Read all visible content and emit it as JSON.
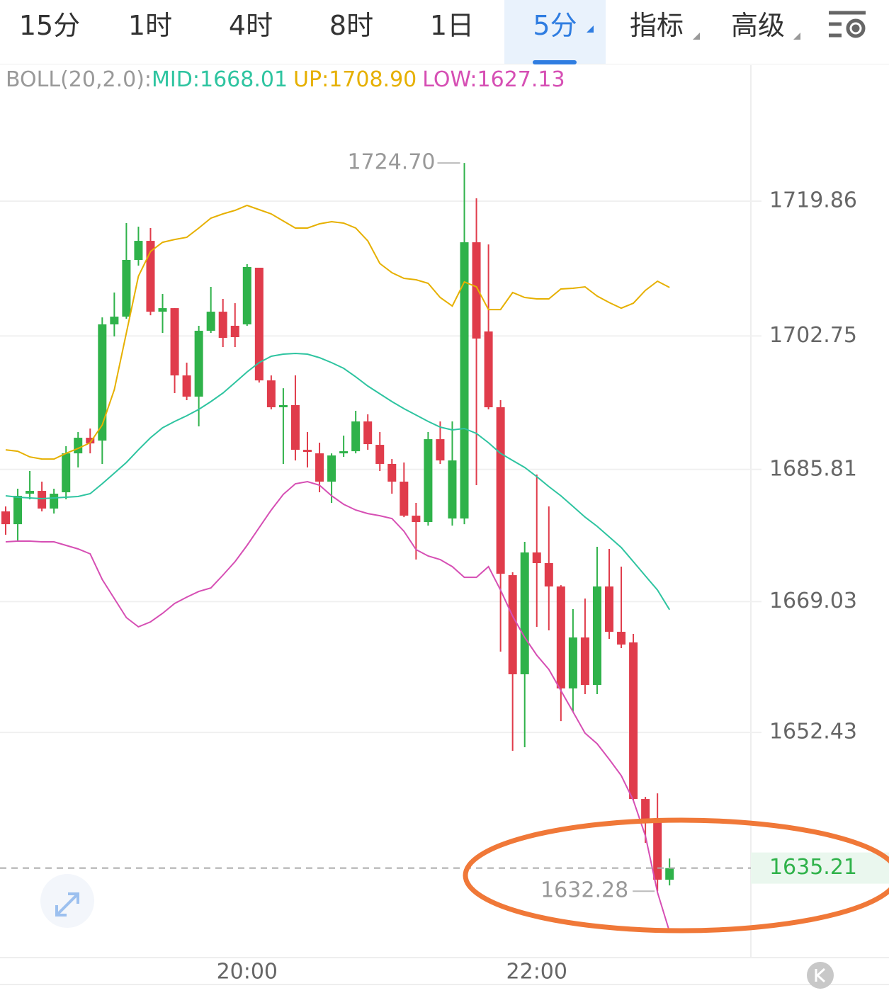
{
  "tabs": [
    "15分",
    "1时",
    "4时",
    "8时",
    "1日",
    "5分",
    "指标",
    "高级"
  ],
  "chart_data": {
    "type": "candlestick",
    "indicator": "BOLL(20,2.0):",
    "up_color": "#2fb24a",
    "down_color": "#e03c4b",
    "categories": [
      null,
      null,
      null,
      null,
      null,
      null,
      null,
      null,
      null,
      null,
      null,
      null,
      null,
      null,
      null,
      null,
      null,
      null,
      null,
      null,
      "20:00",
      null,
      null,
      null,
      null,
      null,
      null,
      null,
      null,
      null,
      null,
      null,
      null,
      null,
      null,
      null,
      null,
      null,
      null,
      null,
      null,
      null,
      null,
      null,
      "22:00",
      null,
      null,
      null,
      null,
      null,
      null,
      null,
      null,
      null,
      null,
      null
    ],
    "open": [
      1680.48,
      1678.86,
      1682.73,
      1683.09,
      1680.84,
      1682.91,
      1687.85,
      1689.83,
      1689.47,
      1704.22,
      1705.2,
      1712.4,
      1714.82,
      1705.83,
      1706.28,
      1697.74,
      1695.05,
      1703.41,
      1705.83,
      1704.04,
      1704.22,
      1711.41,
      1697.11,
      1693.7,
      1693.97,
      1688.3,
      1687.85,
      1684.26,
      1687.85,
      1688.12,
      1691.9,
      1688.93,
      1686.51,
      1684.26,
      1679.94,
      1679.13,
      1689.65,
      1679.58,
      1679.58,
      1714.64,
      1703.32,
      1693.7,
      1672.39,
      1659.81,
      1675.27,
      1673.92,
      1670.95,
      1658.01,
      1664.48,
      1658.46,
      1670.95,
      1665.2,
      1663.85,
      1643.98,
      1641.38,
      1633.73
    ],
    "high": [
      1681.11,
      1683.36,
      1685.61,
      1684.26,
      1683.36,
      1688.75,
      1690.55,
      1691.0,
      1705.11,
      1708.26,
      1717.07,
      1716.62,
      1716.44,
      1708.08,
      1706.28,
      1699.36,
      1704.04,
      1708.98,
      1707.45,
      1706.91,
      1711.86,
      1711.41,
      1697.74,
      1696.12,
      1697.74,
      1690.55,
      1689.2,
      1687.85,
      1690.1,
      1693.25,
      1692.8,
      1690.55,
      1687.13,
      1686.69,
      1681.56,
      1690.55,
      1691.9,
      1691.9,
      1724.7,
      1720.22,
      1714.37,
      1694.6,
      1672.75,
      1676.62,
      1685.16,
      1681.11,
      1671.13,
      1668.08,
      1669.42,
      1675.99,
      1675.72,
      1673.47,
      1664.93,
      1644.25,
      1644.7,
      1636.43
    ],
    "low": [
      1677.52,
      1676.62,
      1682.01,
      1680.48,
      1680.21,
      1682.01,
      1686.06,
      1687.85,
      1686.51,
      1702.69,
      1704.93,
      1711.68,
      1705.38,
      1703.14,
      1695.5,
      1694.6,
      1691.27,
      1703.14,
      1701.34,
      1701.34,
      1704.04,
      1696.84,
      1693.43,
      1686.51,
      1686.95,
      1686.06,
      1682.91,
      1681.56,
      1687.4,
      1687.85,
      1688.3,
      1685.61,
      1682.73,
      1679.76,
      1674.37,
      1678.68,
      1686.51,
      1678.68,
      1678.86,
      1683.81,
      1693.43,
      1662.68,
      1650.1,
      1650.55,
      1665.83,
      1665.38,
      1653.87,
      1655.04,
      1657.29,
      1657.29,
      1664.3,
      1663.13,
      1643.8,
      1638.41,
      1632.28,
      1633.01
    ],
    "close": [
      1678.86,
      1682.46,
      1683.09,
      1680.84,
      1682.73,
      1687.85,
      1689.83,
      1689.11,
      1704.22,
      1705.2,
      1712.4,
      1714.82,
      1705.83,
      1706.28,
      1697.74,
      1695.05,
      1703.41,
      1705.83,
      1702.51,
      1702.6,
      1711.5,
      1697.11,
      1693.7,
      1693.97,
      1688.3,
      1688.03,
      1684.26,
      1687.58,
      1688.12,
      1691.9,
      1689.02,
      1686.51,
      1684.26,
      1679.94,
      1679.13,
      1689.65,
      1686.95,
      1686.95,
      1714.64,
      1702.42,
      1693.7,
      1672.57,
      1659.81,
      1675.27,
      1673.92,
      1670.95,
      1658.01,
      1664.48,
      1658.46,
      1670.95,
      1665.2,
      1663.58,
      1643.98,
      1641.38,
      1633.73,
      1635.21
    ],
    "high_labels": [
      null,
      null,
      null,
      null,
      null,
      null,
      null,
      null,
      null,
      null,
      null,
      null,
      null,
      null,
      null,
      null,
      null,
      null,
      null,
      null,
      null,
      null,
      null,
      null,
      null,
      null,
      null,
      null,
      null,
      null,
      null,
      null,
      null,
      null,
      null,
      null,
      null,
      null,
      "1724.70",
      null,
      null,
      null,
      null,
      null,
      null,
      null,
      null,
      null,
      null,
      null,
      null,
      null,
      null,
      null,
      null,
      null
    ],
    "series": [
      {
        "name": "MID:",
        "color": "#2ec4a0",
        "values": [
          1682.46,
          1682.28,
          1682.19,
          1682.1,
          1682.19,
          1682.28,
          1682.37,
          1682.73,
          1683.99,
          1685.34,
          1686.69,
          1688.3,
          1689.83,
          1691.09,
          1691.9,
          1692.62,
          1693.43,
          1694.42,
          1695.5,
          1696.84,
          1698.19,
          1699.36,
          1700.17,
          1700.44,
          1700.53,
          1700.44,
          1699.99,
          1699.36,
          1698.64,
          1697.56,
          1696.4,
          1695.41,
          1694.42,
          1693.52,
          1692.71,
          1691.9,
          1691.18,
          1690.82,
          1691.0,
          1690.37,
          1689.2,
          1687.85,
          1686.95,
          1686.06,
          1684.89,
          1683.63,
          1682.46,
          1681.11,
          1679.76,
          1678.59,
          1677.25,
          1675.9,
          1674.1,
          1672.3,
          1670.5,
          1668.01
        ]
      },
      {
        "name": "UP:",
        "color": "#e6b000",
        "values": [
          1688.3,
          1688.12,
          1687.4,
          1687.13,
          1687.13,
          1687.85,
          1688.48,
          1689.2,
          1691.45,
          1695.94,
          1703.14,
          1710.33,
          1713.48,
          1714.64,
          1715.0,
          1715.27,
          1716.44,
          1717.7,
          1718.24,
          1718.69,
          1719.32,
          1718.78,
          1718.24,
          1717.34,
          1716.44,
          1716.44,
          1716.98,
          1717.25,
          1717.07,
          1716.44,
          1714.82,
          1711.95,
          1710.78,
          1710.06,
          1709.88,
          1709.43,
          1707.63,
          1706.55,
          1709.61,
          1708.98,
          1706.1,
          1706.1,
          1708.26,
          1707.63,
          1707.45,
          1707.45,
          1708.71,
          1708.8,
          1708.98,
          1707.81,
          1707.0,
          1706.28,
          1706.91,
          1708.53,
          1709.7,
          1708.9
        ],
        "value_labels": [
          null,
          null,
          null,
          null,
          null,
          null,
          null,
          null,
          null,
          null,
          null,
          null,
          null,
          null,
          null,
          null,
          null,
          null,
          null,
          null,
          null,
          null,
          null,
          null,
          null,
          null,
          null,
          null,
          null,
          null,
          null,
          null,
          null,
          null,
          null,
          null,
          null,
          null,
          null,
          null,
          null,
          null,
          null,
          null,
          null,
          null,
          null,
          null,
          null,
          null,
          null,
          null,
          null,
          null,
          null,
          "1708.90"
        ]
      },
      {
        "name": "LOW:",
        "color": "#d64fb4",
        "values": [
          1676.62,
          1676.71,
          1676.71,
          1676.62,
          1676.62,
          1676.17,
          1675.72,
          1675.09,
          1671.85,
          1669.42,
          1667.0,
          1665.83,
          1666.46,
          1667.54,
          1668.8,
          1669.6,
          1670.32,
          1670.77,
          1672.39,
          1674.1,
          1676.17,
          1678.41,
          1680.66,
          1682.64,
          1683.99,
          1684.26,
          1683.81,
          1682.46,
          1681.38,
          1680.66,
          1680.21,
          1679.94,
          1679.58,
          1677.96,
          1675.63,
          1674.82,
          1674.37,
          1673.47,
          1672.12,
          1672.12,
          1673.47,
          1670.5,
          1667.18,
          1664.48,
          1662.23,
          1660.43,
          1657.74,
          1655.04,
          1652.34,
          1650.99,
          1649.02,
          1646.95,
          1643.8,
          1639.31,
          1632.12,
          1627.13
        ]
      }
    ],
    "ylim": [
      1624.03,
      1737.12
    ],
    "yticks": [
      1719.86,
      1702.75,
      1685.81,
      1669.03,
      1652.43
    ],
    "grid": true
  }
}
